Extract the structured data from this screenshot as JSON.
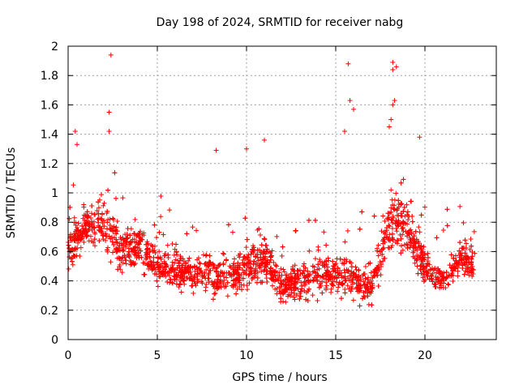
{
  "chart_data": {
    "type": "scatter",
    "title": "Day 198 of 2024, SRMTID for receiver nabg",
    "xlabel": "GPS time / hours",
    "ylabel": "SRMTID / TECUs",
    "xlim": [
      0,
      24
    ],
    "ylim": [
      0,
      2
    ],
    "xticks": [
      0,
      5,
      10,
      15,
      20
    ],
    "yticks": [
      0,
      0.2,
      0.4,
      0.6,
      0.8,
      1,
      1.2,
      1.4,
      1.6,
      1.8,
      2
    ],
    "xtick_labels": [
      "0",
      "5",
      "10",
      "15",
      "20"
    ],
    "ytick_labels": [
      "0",
      "0.2",
      "0.4",
      "0.6",
      "0.8",
      "1",
      "1.2",
      "1.4",
      "1.6",
      "1.8",
      "2"
    ],
    "grid": true,
    "marker": "+",
    "series_color": "#ff0000",
    "x_range": [
      0,
      22.8
    ],
    "envelope": {
      "x_hours": [
        0,
        1,
        2,
        3,
        4,
        5,
        6,
        7,
        8,
        9,
        10,
        11,
        12,
        13,
        14,
        15,
        16,
        17,
        18,
        19,
        20,
        21,
        22,
        22.8
      ],
      "mean": [
        0.6,
        0.78,
        0.8,
        0.6,
        0.65,
        0.5,
        0.48,
        0.45,
        0.45,
        0.42,
        0.5,
        0.55,
        0.35,
        0.4,
        0.45,
        0.45,
        0.4,
        0.35,
        0.8,
        0.75,
        0.5,
        0.4,
        0.55,
        0.5
      ],
      "spread": [
        0.2,
        0.25,
        0.25,
        0.25,
        0.22,
        0.18,
        0.2,
        0.18,
        0.2,
        0.18,
        0.25,
        0.25,
        0.15,
        0.2,
        0.2,
        0.2,
        0.2,
        0.18,
        0.3,
        0.3,
        0.2,
        0.15,
        0.18,
        0.18
      ]
    },
    "outliers": [
      {
        "x": 2.4,
        "y": 1.94
      },
      {
        "x": 2.3,
        "y": 1.55
      },
      {
        "x": 2.3,
        "y": 1.42
      },
      {
        "x": 0.4,
        "y": 1.42
      },
      {
        "x": 15.7,
        "y": 1.88
      },
      {
        "x": 18.2,
        "y": 1.89
      },
      {
        "x": 18.4,
        "y": 1.86
      },
      {
        "x": 18.2,
        "y": 1.84
      },
      {
        "x": 15.8,
        "y": 1.63
      },
      {
        "x": 16.0,
        "y": 1.57
      },
      {
        "x": 18.3,
        "y": 1.63
      },
      {
        "x": 18.2,
        "y": 1.6
      },
      {
        "x": 11.0,
        "y": 1.36
      },
      {
        "x": 10.0,
        "y": 1.3
      },
      {
        "x": 19.7,
        "y": 1.38
      },
      {
        "x": 8.3,
        "y": 1.29
      },
      {
        "x": 15.5,
        "y": 1.42
      },
      {
        "x": 18.1,
        "y": 1.5
      },
      {
        "x": 18.0,
        "y": 1.45
      },
      {
        "x": 0.5,
        "y": 1.33
      }
    ]
  }
}
